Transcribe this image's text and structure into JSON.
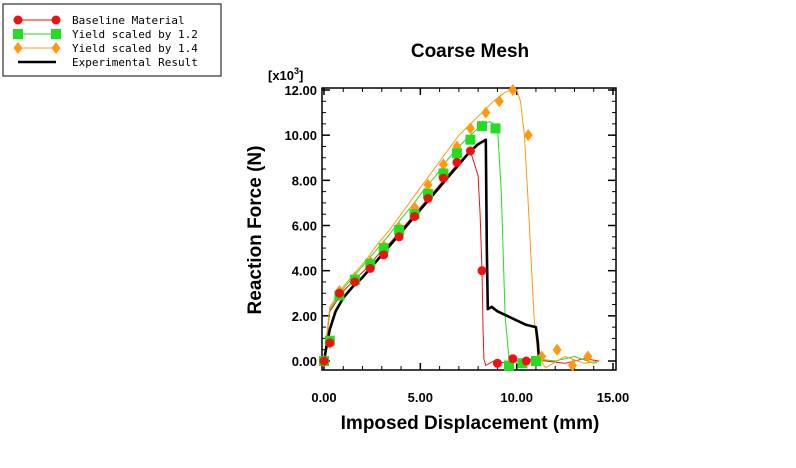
{
  "chart_data": {
    "type": "line",
    "title": "Coarse Mesh",
    "xlabel": "Imposed Displacement (mm)",
    "ylabel": "Reaction Force (N)",
    "y_multiplier_label": "[x10",
    "y_multiplier_exp": "3",
    "y_multiplier_close": "]",
    "xlim": [
      0,
      15
    ],
    "ylim": [
      -0.4,
      12
    ],
    "xticks": [
      0,
      5,
      10,
      15
    ],
    "xtick_labels": [
      "0.00",
      "5.00",
      "10.00",
      "15.00"
    ],
    "yticks": [
      0,
      2,
      4,
      6,
      8,
      10,
      12
    ],
    "ytick_labels": [
      "0.00",
      "2.00",
      "4.00",
      "6.00",
      "8.00",
      "10.00",
      "12.00"
    ],
    "grid": false,
    "legend_position": "top-left",
    "series": [
      {
        "name": "Baseline Material",
        "color": "#ee1111",
        "marker": "circle",
        "x": [
          0.0,
          0.3,
          1.0,
          1.6,
          2.2,
          2.8,
          3.4,
          4.0,
          4.6,
          5.2,
          5.8,
          6.4,
          7.0,
          7.6,
          8.0,
          8.1,
          8.2,
          8.25,
          8.3,
          8.4,
          8.8,
          9.5,
          10.5,
          11.5,
          12.5,
          13.5,
          14.3
        ],
        "y": [
          0.0,
          2.2,
          3.1,
          3.6,
          4.1,
          4.7,
          5.2,
          5.8,
          6.4,
          7.0,
          7.6,
          8.2,
          8.8,
          9.3,
          8.2,
          6.5,
          4.0,
          1.5,
          0.1,
          -0.2,
          0.0,
          -0.1,
          0.1,
          0.0,
          -0.1,
          0.1,
          0.0
        ],
        "markers_x": [
          0.0,
          0.3,
          0.8,
          1.6,
          2.4,
          3.1,
          3.9,
          4.7,
          5.4,
          6.2,
          6.9,
          7.6,
          8.2,
          9.0,
          9.8,
          10.5
        ],
        "markers_y": [
          0.0,
          0.8,
          3.0,
          3.5,
          4.1,
          4.7,
          5.5,
          6.4,
          7.2,
          8.1,
          8.8,
          9.3,
          4.0,
          -0.1,
          0.1,
          0.0
        ]
      },
      {
        "name": "Yield scaled by 1.2",
        "color": "#22dd22",
        "marker": "square",
        "x": [
          0.0,
          0.3,
          1.0,
          1.6,
          2.2,
          2.8,
          3.4,
          4.0,
          4.6,
          5.2,
          5.8,
          6.4,
          7.0,
          7.6,
          8.0,
          8.3,
          8.6,
          9.0,
          9.2,
          9.4,
          9.6,
          10.2,
          11.0,
          12.0,
          13.0,
          14.0,
          14.3
        ],
        "y": [
          0.0,
          2.3,
          3.2,
          3.8,
          4.4,
          5.0,
          5.6,
          6.3,
          6.9,
          7.6,
          8.2,
          8.9,
          9.5,
          10.0,
          10.3,
          10.5,
          10.6,
          10.4,
          7.5,
          2.0,
          0.1,
          -0.2,
          0.1,
          0.0,
          0.2,
          -0.1,
          0.0
        ],
        "markers_x": [
          0.0,
          0.3,
          0.8,
          1.6,
          2.4,
          3.1,
          3.9,
          4.7,
          5.4,
          6.2,
          6.9,
          7.6,
          8.2,
          8.9,
          9.6,
          10.3,
          11.0
        ],
        "markers_y": [
          0.0,
          0.9,
          2.9,
          3.6,
          4.3,
          5.0,
          5.8,
          6.5,
          7.4,
          8.3,
          9.2,
          9.8,
          10.4,
          10.3,
          -0.2,
          -0.1,
          0.0
        ]
      },
      {
        "name": "Yield scaled by 1.4",
        "color": "#ff9910",
        "marker": "diamond",
        "x": [
          0.0,
          0.3,
          1.0,
          1.6,
          2.2,
          2.8,
          3.4,
          4.0,
          4.6,
          5.2,
          5.8,
          6.4,
          7.0,
          7.6,
          8.2,
          8.8,
          9.4,
          9.7,
          10.0,
          10.2,
          10.4,
          10.6,
          10.9,
          11.1,
          11.5,
          12.5,
          13.5,
          14.3
        ],
        "y": [
          0.0,
          2.4,
          3.3,
          3.9,
          4.5,
          5.2,
          5.8,
          6.5,
          7.2,
          7.9,
          8.6,
          9.3,
          10.0,
          10.5,
          11.0,
          11.5,
          11.9,
          12.0,
          12.0,
          11.5,
          10.0,
          7.0,
          2.0,
          0.2,
          -0.3,
          0.2,
          -0.1,
          0.0
        ],
        "markers_x": [
          0.0,
          0.3,
          0.8,
          1.6,
          2.4,
          3.1,
          3.9,
          4.7,
          5.4,
          6.2,
          6.9,
          7.6,
          8.4,
          9.1,
          9.8,
          10.6,
          11.3,
          12.1,
          12.9,
          13.7
        ],
        "markers_y": [
          0.0,
          0.8,
          3.1,
          3.7,
          4.4,
          5.1,
          5.9,
          6.8,
          7.8,
          8.7,
          9.5,
          10.3,
          11.0,
          11.5,
          12.0,
          10.0,
          0.2,
          0.5,
          -0.2,
          0.2
        ]
      },
      {
        "name": "Experimental Result",
        "color": "#000000",
        "marker": "none",
        "x": [
          0.0,
          0.1,
          0.3,
          0.6,
          1.0,
          1.5,
          2.0,
          2.5,
          3.0,
          3.5,
          4.0,
          4.5,
          5.0,
          5.5,
          6.0,
          6.5,
          7.0,
          7.5,
          8.0,
          8.4,
          8.45,
          8.5,
          8.7,
          9.0,
          9.5,
          10.0,
          10.5,
          11.0,
          11.1,
          11.15,
          11.2
        ],
        "y": [
          0.0,
          0.5,
          1.4,
          2.2,
          2.8,
          3.3,
          3.7,
          4.2,
          4.7,
          5.2,
          5.7,
          6.2,
          6.7,
          7.2,
          7.7,
          8.2,
          8.7,
          9.2,
          9.6,
          9.8,
          5.0,
          2.3,
          2.4,
          2.2,
          2.0,
          1.8,
          1.6,
          1.5,
          0.8,
          0.2,
          0.0
        ]
      }
    ]
  }
}
